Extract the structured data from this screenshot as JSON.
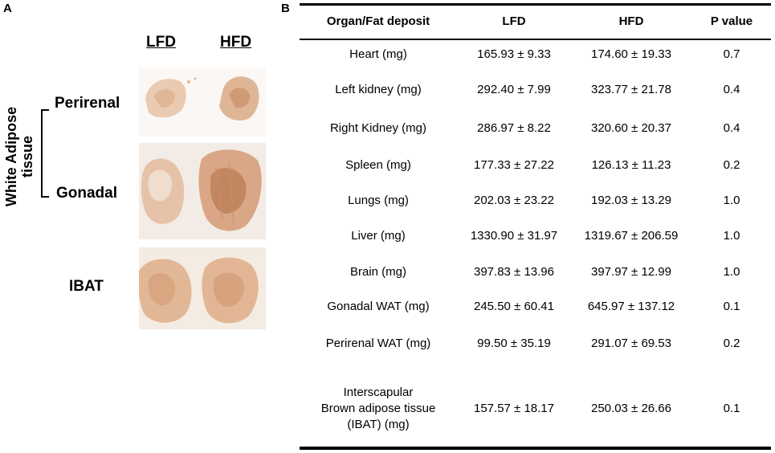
{
  "panel_a": {
    "label": "A",
    "vertical_title": "White Adipose tissue",
    "columns": [
      "LFD",
      "HFD"
    ],
    "rows": [
      "Perirenal",
      "Gonadal",
      "IBAT"
    ]
  },
  "panel_b": {
    "label": "B",
    "headers": [
      "Organ/Fat deposit",
      "LFD",
      "HFD",
      "P value"
    ],
    "rows": [
      {
        "organ": "Heart (mg)",
        "lfd": "165.93 ± 9.33",
        "hfd": "174.60 ± 19.33",
        "p": "0.7"
      },
      {
        "organ": "Left kidney (mg)",
        "lfd": "292.40 ± 7.99",
        "hfd": "323.77 ± 21.78",
        "p": "0.4"
      },
      {
        "organ": "Right Kidney (mg)",
        "lfd": "286.97 ± 8.22",
        "hfd": "320.60 ± 20.37",
        "p": "0.4"
      },
      {
        "organ": "Spleen (mg)",
        "lfd": "177.33 ± 27.22",
        "hfd": "126.13 ± 11.23",
        "p": "0.2"
      },
      {
        "organ": "Lungs (mg)",
        "lfd": "202.03 ± 23.22",
        "hfd": "192.03 ± 13.29",
        "p": "1.0"
      },
      {
        "organ": "Liver (mg)",
        "lfd": "1330.90 ± 31.97",
        "hfd": "1319.67 ± 206.59",
        "p": "1.0"
      },
      {
        "organ": "Brain (mg)",
        "lfd": "397.83 ± 13.96",
        "hfd": "397.97 ± 12.99",
        "p": "1.0"
      },
      {
        "organ": "Gonadal WAT (mg)",
        "lfd": "245.50 ± 60.41",
        "hfd": "645.97 ± 137.12",
        "p": "0.1"
      },
      {
        "organ": "Perirenal WAT (mg)",
        "lfd": "99.50 ± 35.19",
        "hfd": "291.07 ± 69.53",
        "p": "0.2"
      },
      {
        "organ_lines": [
          "Interscapular",
          "Brown adipose tissue",
          "(IBAT) (mg)"
        ],
        "lfd": "157.57 ± 18.17",
        "hfd": "250.03 ± 26.66",
        "p": "0.1"
      }
    ]
  }
}
